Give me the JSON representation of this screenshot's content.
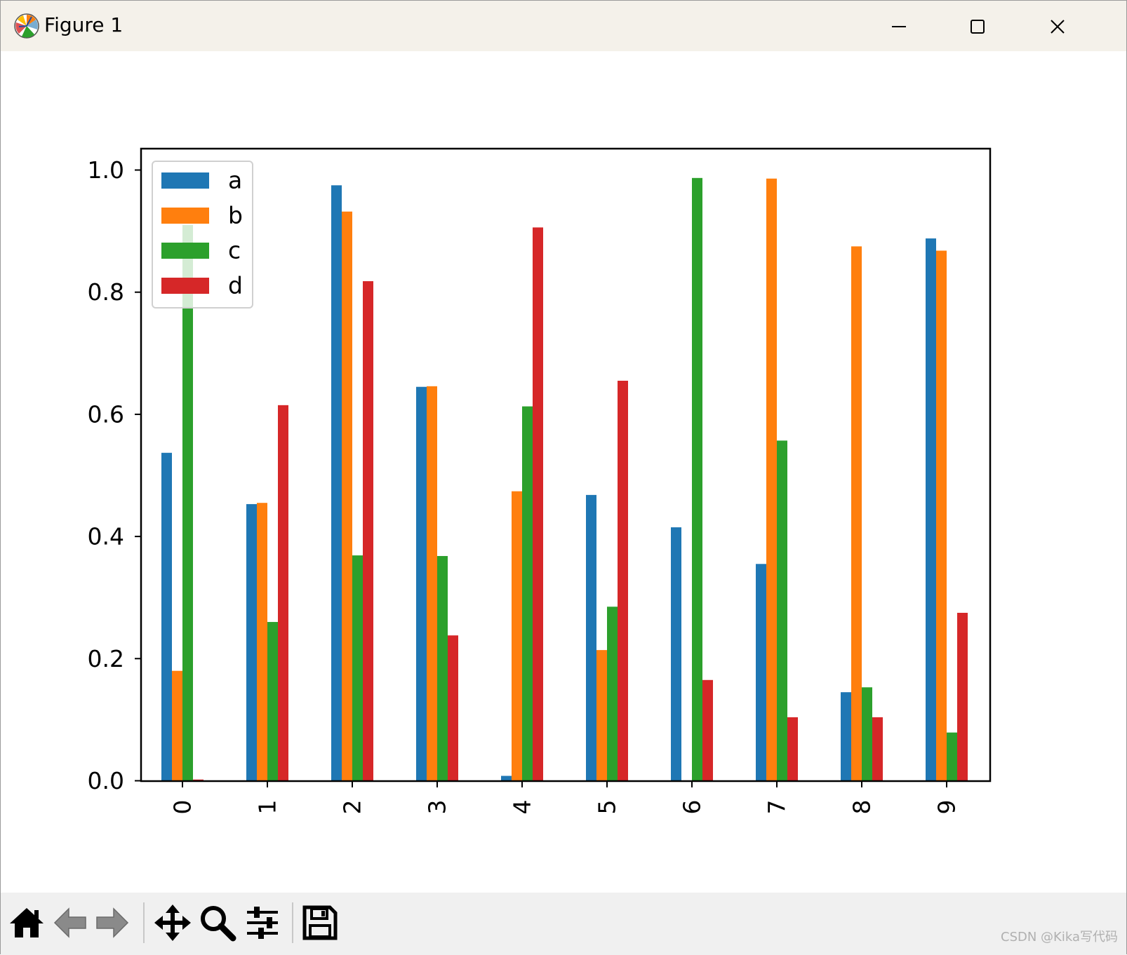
{
  "window": {
    "title": "Figure 1",
    "icon": "matplotlib-logo-icon",
    "controls": [
      "minimize-icon",
      "maximize-icon",
      "close-icon"
    ]
  },
  "toolbar": {
    "buttons": [
      "home-icon",
      "back-arrow-icon",
      "forward-arrow-icon",
      "pan-icon",
      "zoom-icon",
      "configure-subplots-icon",
      "save-icon"
    ]
  },
  "watermark": "CSDN @Kika写代码",
  "chart_data": {
    "type": "bar",
    "categories": [
      "0",
      "1",
      "2",
      "3",
      "4",
      "5",
      "6",
      "7",
      "8",
      "9"
    ],
    "series": [
      {
        "name": "a",
        "color": "#1f77b4",
        "values": [
          0.537,
          0.453,
          0.975,
          0.645,
          0.008,
          0.468,
          0.415,
          0.355,
          0.145,
          0.888
        ]
      },
      {
        "name": "b",
        "color": "#ff7f0e",
        "values": [
          0.18,
          0.455,
          0.932,
          0.646,
          0.474,
          0.214,
          0.0,
          0.986,
          0.875,
          0.868
        ]
      },
      {
        "name": "c",
        "color": "#2ca02c",
        "values": [
          0.91,
          0.26,
          0.369,
          0.368,
          0.613,
          0.285,
          0.987,
          0.557,
          0.153,
          0.079
        ]
      },
      {
        "name": "d",
        "color": "#d62728",
        "values": [
          0.002,
          0.615,
          0.818,
          0.238,
          0.906,
          0.655,
          0.165,
          0.104,
          0.104,
          0.275
        ]
      }
    ],
    "ylim": [
      0,
      1.0363
    ],
    "yticks": [
      "0.0",
      "0.2",
      "0.4",
      "0.6",
      "0.8",
      "1.0"
    ],
    "xtick_rotation": "vertical",
    "legend": "upper-left",
    "grid": false
  }
}
